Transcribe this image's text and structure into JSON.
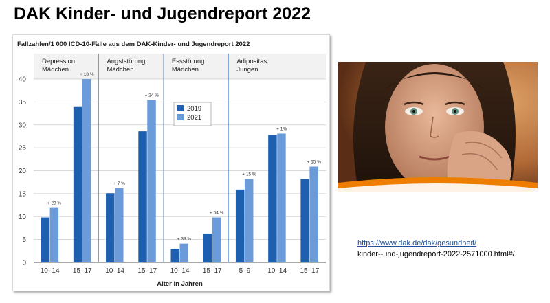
{
  "slide": {
    "title": "DAK Kinder- und Jugendreport 2022",
    "source_link": "https://www.dak.de/dak/gesundheit/",
    "source_path": "kinder--und-jugendreport-2022-2571000.html#/"
  },
  "colors": {
    "bar_2019": "#1f5fb0",
    "bar_2021": "#6b9bd8",
    "divider": "#6b9bd8",
    "grid": "#cccccc",
    "photo_warm": "#c8783c",
    "photo_dark": "#2e1c12",
    "photo_accent": "#ef7d00"
  },
  "photo": {
    "description_icon": "girl-portrait-photo"
  },
  "chart_data": {
    "type": "bar",
    "title": "Fallzahlen/1 000 ICD-10-Fälle aus dem DAK-Kinder- und Jugendreport 2022",
    "xlabel": "Alter in Jahren",
    "ylabel": "",
    "ylim": [
      0,
      40
    ],
    "yticks": [
      0,
      5,
      10,
      15,
      20,
      25,
      30,
      35,
      40
    ],
    "grid": true,
    "legend_position": "center-top",
    "groups": [
      {
        "label_line1": "Depression",
        "label_line2": "Mädchen"
      },
      {
        "label_line1": "Angststörung",
        "label_line2": "Mädchen"
      },
      {
        "label_line1": "Essstörung",
        "label_line2": "Mädchen"
      },
      {
        "label_line1": "Adipositas",
        "label_line2": "Jungen"
      }
    ],
    "categories": [
      "10–14",
      "15–17",
      "10–14",
      "15–17",
      "10–14",
      "15–17",
      "5–9",
      "10–14",
      "15–17"
    ],
    "group_index": [
      0,
      0,
      1,
      1,
      2,
      2,
      3,
      3,
      3
    ],
    "series": [
      {
        "name": "2019",
        "values": [
          9.8,
          33.9,
          15.1,
          28.6,
          3.0,
          6.3,
          15.9,
          27.8,
          18.2
        ]
      },
      {
        "name": "2021",
        "values": [
          11.9,
          40.0,
          16.2,
          35.4,
          4.1,
          9.8,
          18.2,
          28.1,
          20.9
        ]
      }
    ],
    "change_labels": [
      "+ 23 %",
      "+ 18 %",
      "+ 7 %",
      "+ 24 %",
      "+ 33 %",
      "+ 54 %",
      "+ 15 %",
      "+ 1%",
      "+ 15 %"
    ]
  }
}
